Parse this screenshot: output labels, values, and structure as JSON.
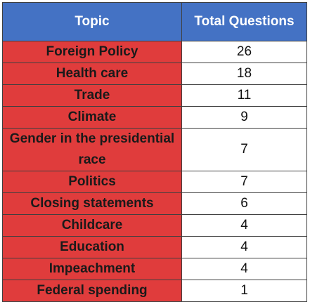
{
  "chart_data": {
    "type": "table",
    "columns": [
      "Topic",
      "Total Questions"
    ],
    "rows": [
      {
        "topic": "Foreign Policy",
        "count": "26"
      },
      {
        "topic": "Health care",
        "count": "18"
      },
      {
        "topic": "Trade",
        "count": "11"
      },
      {
        "topic": "Climate",
        "count": "9"
      },
      {
        "topic": "Gender in the presidential race",
        "count": "7"
      },
      {
        "topic": "Politics",
        "count": "7"
      },
      {
        "topic": "Closing statements",
        "count": "6"
      },
      {
        "topic": "Childcare",
        "count": "4"
      },
      {
        "topic": "Education",
        "count": "4"
      },
      {
        "topic": "Impeachment",
        "count": "4"
      },
      {
        "topic": "Federal spending",
        "count": "1"
      }
    ]
  },
  "colors": {
    "header_background": "#4472c4",
    "topic_cell_background": "#e03c3c",
    "count_cell_background": "#ffffff",
    "border": "#3f3f3f"
  }
}
